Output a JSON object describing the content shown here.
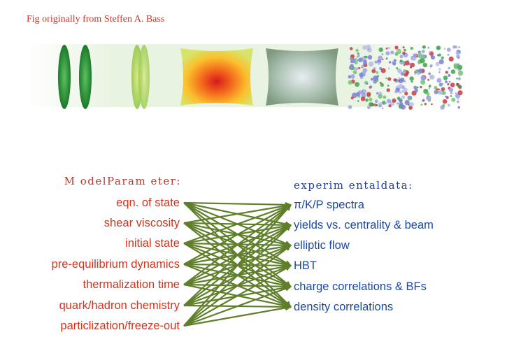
{
  "caption": "Fig originally from Steffen A. Bass",
  "stages": [
    {
      "name": "colliding-nuclei-icon"
    },
    {
      "name": "pre-equilibrium-icon"
    },
    {
      "name": "hot-qgp-icon"
    },
    {
      "name": "hadronization-icon"
    },
    {
      "name": "hadron-gas-icon"
    }
  ],
  "left": {
    "header": "M odelParam eter:",
    "items": [
      "eqn. of state",
      "shear viscosity",
      "initial state",
      "pre-equilibrium dynamics",
      "thermalization time",
      "quark/hadron chemistry",
      "particlization/freeze-out"
    ]
  },
  "right": {
    "header": "experim entaldata:",
    "items": [
      "π/K/P spectra",
      "yields vs. centrality & beam",
      "elliptic flow",
      "HBT",
      "charge correlations & BFs",
      "density correlations"
    ]
  },
  "colors": {
    "arrow": "#5f7f2a",
    "left_text": "#d2341f",
    "right_text": "#1b49a6"
  }
}
